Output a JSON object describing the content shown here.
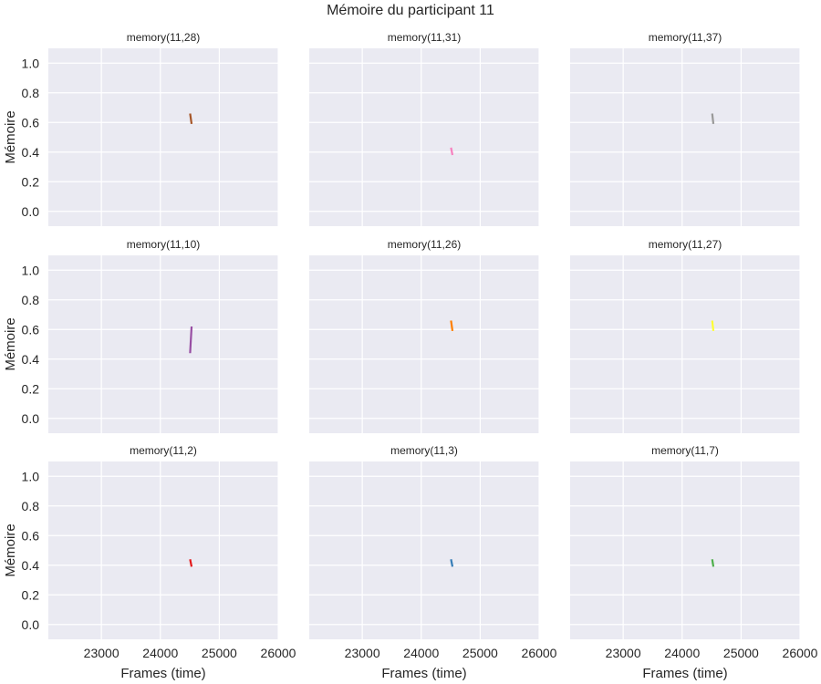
{
  "figure": {
    "title": "Mémoire du participant 11",
    "ylabel": "Mémoire",
    "xlabel": "Frames (time)"
  },
  "colors": {
    "panel_bg": "#eaeaf2",
    "grid": "#ffffff",
    "text": "#262626"
  },
  "chart_data": [
    {
      "type": "line",
      "title": "memory(11,28)",
      "xlim": [
        22100,
        26000
      ],
      "ylim": [
        -0.1,
        1.1
      ],
      "xticks": [
        23000,
        24000,
        25000,
        26000
      ],
      "yticks": [
        0.0,
        0.2,
        0.4,
        0.6,
        0.8,
        1.0
      ],
      "ytick_labels": [
        "0.0",
        "0.2",
        "0.4",
        "0.6",
        "0.8",
        "1.0"
      ],
      "color": "#a65628",
      "series": [
        {
          "x": [
            24505,
            24530
          ],
          "y": [
            0.66,
            0.59
          ]
        }
      ]
    },
    {
      "type": "line",
      "title": "memory(11,31)",
      "xlim": [
        22100,
        26000
      ],
      "ylim": [
        -0.1,
        1.1
      ],
      "xticks": [
        23000,
        24000,
        25000,
        26000
      ],
      "yticks": [
        0.0,
        0.2,
        0.4,
        0.6,
        0.8,
        1.0
      ],
      "ytick_labels": [],
      "color": "#f781bf",
      "series": [
        {
          "x": [
            24505,
            24530
          ],
          "y": [
            0.43,
            0.38
          ]
        }
      ]
    },
    {
      "type": "line",
      "title": "memory(11,37)",
      "xlim": [
        22100,
        26000
      ],
      "ylim": [
        -0.1,
        1.1
      ],
      "xticks": [
        23000,
        24000,
        25000,
        26000
      ],
      "yticks": [
        0.0,
        0.2,
        0.4,
        0.6,
        0.8,
        1.0
      ],
      "ytick_labels": [],
      "color": "#999999",
      "series": [
        {
          "x": [
            24510,
            24530
          ],
          "y": [
            0.66,
            0.59
          ]
        }
      ]
    },
    {
      "type": "line",
      "title": "memory(11,10)",
      "xlim": [
        22100,
        26000
      ],
      "ylim": [
        -0.1,
        1.1
      ],
      "xticks": [
        23000,
        24000,
        25000,
        26000
      ],
      "yticks": [
        0.0,
        0.2,
        0.4,
        0.6,
        0.8,
        1.0
      ],
      "ytick_labels": [
        "0.0",
        "0.2",
        "0.4",
        "0.6",
        "0.8",
        "1.0"
      ],
      "color": "#984ea3",
      "series": [
        {
          "x": [
            24505,
            24530
          ],
          "y": [
            0.44,
            0.62
          ]
        }
      ]
    },
    {
      "type": "line",
      "title": "memory(11,26)",
      "xlim": [
        22100,
        26000
      ],
      "ylim": [
        -0.1,
        1.1
      ],
      "xticks": [
        23000,
        24000,
        25000,
        26000
      ],
      "yticks": [
        0.0,
        0.2,
        0.4,
        0.6,
        0.8,
        1.0
      ],
      "ytick_labels": [],
      "color": "#ff7f00",
      "series": [
        {
          "x": [
            24505,
            24530
          ],
          "y": [
            0.66,
            0.59
          ]
        }
      ]
    },
    {
      "type": "line",
      "title": "memory(11,27)",
      "xlim": [
        22100,
        26000
      ],
      "ylim": [
        -0.1,
        1.1
      ],
      "xticks": [
        23000,
        24000,
        25000,
        26000
      ],
      "yticks": [
        0.0,
        0.2,
        0.4,
        0.6,
        0.8,
        1.0
      ],
      "ytick_labels": [],
      "color": "#ffff33",
      "series": [
        {
          "x": [
            24510,
            24530
          ],
          "y": [
            0.66,
            0.59
          ]
        }
      ]
    },
    {
      "type": "line",
      "title": "memory(11,2)",
      "xlim": [
        22100,
        26000
      ],
      "ylim": [
        -0.1,
        1.1
      ],
      "xticks": [
        23000,
        24000,
        25000,
        26000
      ],
      "xtick_labels": [
        "23000",
        "24000",
        "25000",
        "26000"
      ],
      "yticks": [
        0.0,
        0.2,
        0.4,
        0.6,
        0.8,
        1.0
      ],
      "ytick_labels": [
        "0.0",
        "0.2",
        "0.4",
        "0.6",
        "0.8",
        "1.0"
      ],
      "color": "#e41a1c",
      "series": [
        {
          "x": [
            24505,
            24530
          ],
          "y": [
            0.44,
            0.39
          ]
        }
      ]
    },
    {
      "type": "line",
      "title": "memory(11,3)",
      "xlim": [
        22100,
        26000
      ],
      "ylim": [
        -0.1,
        1.1
      ],
      "xticks": [
        23000,
        24000,
        25000,
        26000
      ],
      "xtick_labels": [
        "23000",
        "24000",
        "25000",
        "26000"
      ],
      "yticks": [
        0.0,
        0.2,
        0.4,
        0.6,
        0.8,
        1.0
      ],
      "ytick_labels": [],
      "color": "#377eb8",
      "series": [
        {
          "x": [
            24505,
            24530
          ],
          "y": [
            0.44,
            0.39
          ]
        }
      ]
    },
    {
      "type": "line",
      "title": "memory(11,7)",
      "xlim": [
        22100,
        26000
      ],
      "ylim": [
        -0.1,
        1.1
      ],
      "xticks": [
        23000,
        24000,
        25000,
        26000
      ],
      "xtick_labels": [
        "23000",
        "24000",
        "25000",
        "26000"
      ],
      "yticks": [
        0.0,
        0.2,
        0.4,
        0.6,
        0.8,
        1.0
      ],
      "ytick_labels": [],
      "color": "#4daf4a",
      "series": [
        {
          "x": [
            24510,
            24530
          ],
          "y": [
            0.44,
            0.39
          ]
        }
      ]
    }
  ]
}
